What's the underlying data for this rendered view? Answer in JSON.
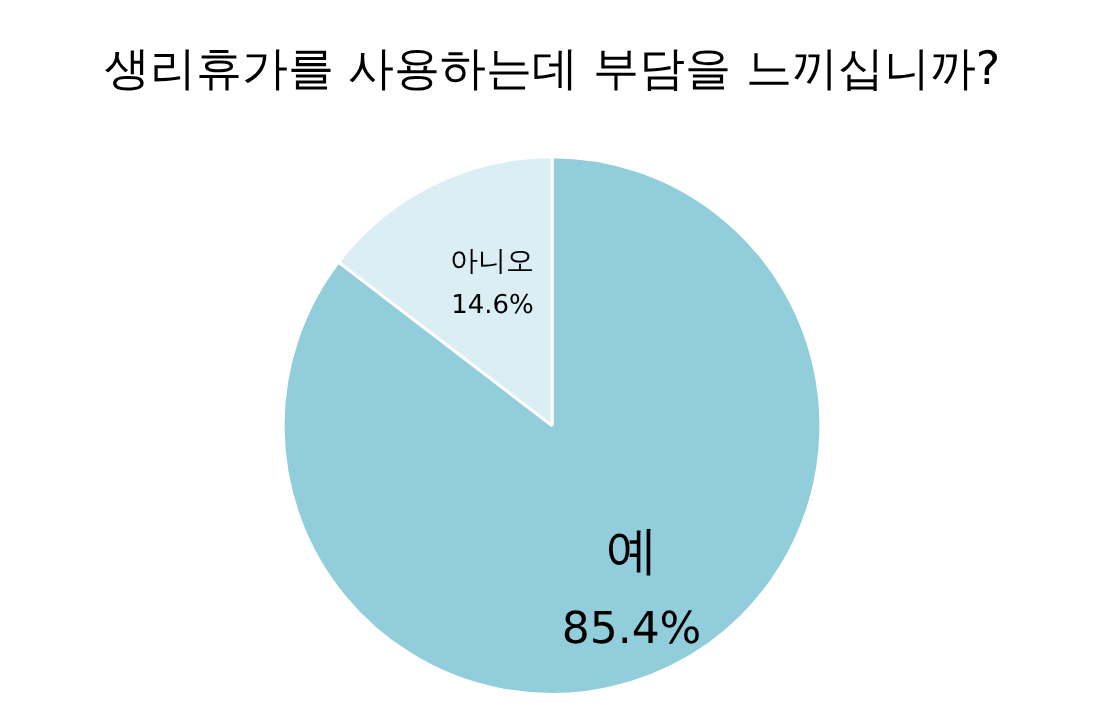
{
  "chart_data": {
    "type": "pie",
    "title": "생리휴가를 사용하는데 부담을 느끼십니까?",
    "categories": [
      "예",
      "아니오"
    ],
    "values": [
      85.4,
      14.6
    ],
    "value_labels": [
      "85.4%",
      "14.6%"
    ],
    "colors": [
      "#92cddc",
      "#dbeef4"
    ],
    "legend": false
  }
}
